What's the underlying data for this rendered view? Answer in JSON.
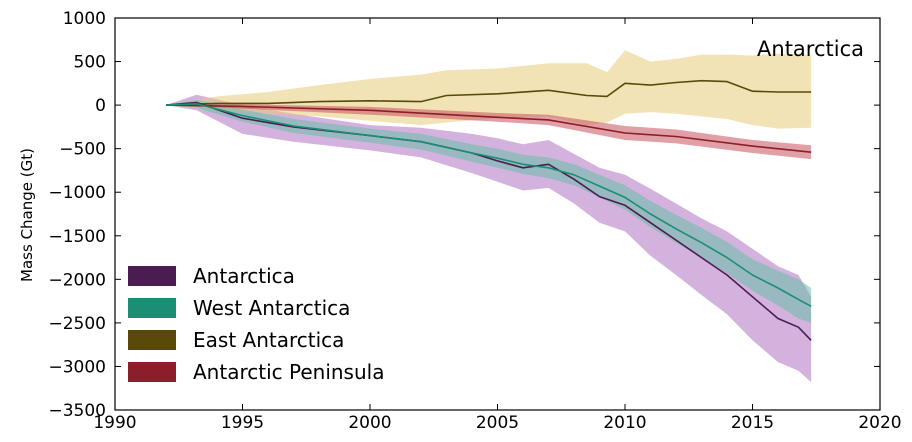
{
  "chart_data": {
    "type": "area",
    "title": "",
    "annotation": "Antarctica",
    "xlabel": "",
    "ylabel": "Mass Change (Gt)",
    "xlim": [
      1990,
      2020
    ],
    "ylim": [
      -3500,
      1000
    ],
    "xticks": [
      "1990",
      "1995",
      "2000",
      "2005",
      "2010",
      "2015",
      "2020"
    ],
    "yticks": [
      "1000",
      "500",
      "0",
      "−500",
      "−1000",
      "−1500",
      "−2000",
      "−2500",
      "−3000",
      "−3500"
    ],
    "grid": false,
    "legend_position": "lower-left",
    "series": [
      {
        "name": "Antarctica",
        "line_color": "#4a1c52",
        "band_color": "#b173c2",
        "x": [
          1992,
          1993.2,
          1995,
          1997,
          2000,
          2002,
          2004,
          2005,
          2006,
          2007,
          2008,
          2009,
          2010,
          2011,
          2012,
          2013,
          2014,
          2015,
          2016,
          2016.8,
          2017.3
        ],
        "y": [
          0,
          30,
          -150,
          -250,
          -350,
          -420,
          -550,
          -640,
          -720,
          -680,
          -850,
          -1050,
          -1150,
          -1350,
          -1550,
          -1750,
          -1950,
          -2200,
          -2450,
          -2550,
          -2700
        ],
        "y_upper": [
          0,
          120,
          0,
          -100,
          -230,
          -260,
          -330,
          -380,
          -450,
          -400,
          -560,
          -720,
          -800,
          -960,
          -1130,
          -1300,
          -1450,
          -1650,
          -1850,
          -1950,
          -2200
        ],
        "y_lower": [
          0,
          -60,
          -330,
          -420,
          -520,
          -600,
          -780,
          -880,
          -980,
          -950,
          -1130,
          -1350,
          -1450,
          -1730,
          -1950,
          -2180,
          -2400,
          -2700,
          -2950,
          -3050,
          -3180
        ]
      },
      {
        "name": "West Antarctica",
        "line_color": "#1b8f73",
        "band_color": "#66bfa5",
        "x": [
          1992,
          1993.2,
          1995,
          1997,
          2000,
          2002,
          2004,
          2005,
          2006,
          2007,
          2008,
          2009,
          2010,
          2011,
          2012,
          2013,
          2014,
          2015,
          2016,
          2016.8,
          2017.3
        ],
        "y": [
          0,
          15,
          -120,
          -240,
          -350,
          -420,
          -550,
          -610,
          -680,
          -720,
          -800,
          -930,
          -1060,
          -1250,
          -1420,
          -1580,
          -1750,
          -1950,
          -2100,
          -2230,
          -2310
        ],
        "y_upper": [
          0,
          60,
          -50,
          -160,
          -270,
          -330,
          -450,
          -500,
          -570,
          -600,
          -680,
          -800,
          -920,
          -1100,
          -1260,
          -1410,
          -1570,
          -1770,
          -1900,
          -2000,
          -2100
        ],
        "y_lower": [
          0,
          -30,
          -190,
          -320,
          -430,
          -510,
          -650,
          -720,
          -790,
          -840,
          -920,
          -1060,
          -1200,
          -1400,
          -1580,
          -1750,
          -1930,
          -2130,
          -2300,
          -2450,
          -2500
        ]
      },
      {
        "name": "East Antarctica",
        "line_color": "#5a4a0a",
        "band_color": "#e8cc7a",
        "x": [
          1992,
          1994,
          1996,
          1998,
          2000,
          2002,
          2003,
          2005,
          2007,
          2008.5,
          2009.3,
          2010,
          2011,
          2012,
          2013,
          2014,
          2015,
          2016,
          2017.3
        ],
        "y": [
          0,
          20,
          20,
          40,
          50,
          40,
          110,
          130,
          170,
          110,
          100,
          250,
          230,
          260,
          280,
          270,
          160,
          150,
          150
        ],
        "y_upper": [
          0,
          100,
          150,
          230,
          300,
          350,
          400,
          420,
          480,
          480,
          380,
          630,
          500,
          530,
          580,
          580,
          570,
          590,
          580
        ],
        "y_lower": [
          0,
          -60,
          -100,
          -130,
          -180,
          -230,
          -200,
          -150,
          -130,
          -230,
          -200,
          -100,
          -80,
          -100,
          -130,
          -160,
          -230,
          -270,
          -260
        ]
      },
      {
        "name": "Antarctic Peninsula",
        "line_color": "#8b1e2a",
        "band_color": "#c9525c",
        "x": [
          1992,
          1995,
          2000,
          2005,
          2007,
          2010,
          2012,
          2015,
          2017.3
        ],
        "y": [
          0,
          -15,
          -60,
          -140,
          -170,
          -320,
          -360,
          -470,
          -540
        ],
        "y_upper": [
          0,
          10,
          -20,
          -90,
          -110,
          -240,
          -280,
          -400,
          -460
        ],
        "y_lower": [
          0,
          -40,
          -110,
          -190,
          -230,
          -400,
          -440,
          -550,
          -620
        ]
      }
    ]
  }
}
